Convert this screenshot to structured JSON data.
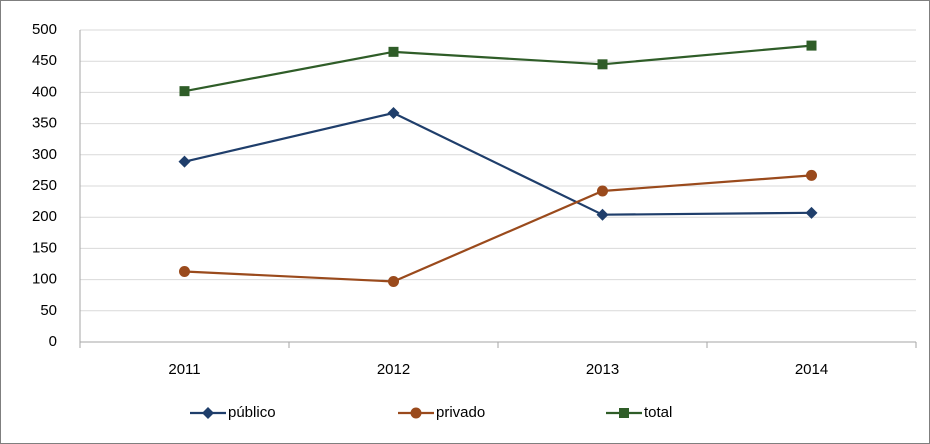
{
  "chart_data": {
    "type": "line",
    "categories": [
      "2011",
      "2012",
      "2013",
      "2014"
    ],
    "series": [
      {
        "name": "público",
        "color": "#1f3e6b",
        "marker": "diamond",
        "values": [
          289,
          367,
          204,
          207
        ]
      },
      {
        "name": "privado",
        "color": "#9a4a1c",
        "marker": "circle",
        "values": [
          113,
          97,
          242,
          267
        ]
      },
      {
        "name": "total",
        "color": "#2f5d28",
        "marker": "square",
        "values": [
          402,
          465,
          445,
          475
        ]
      }
    ],
    "ylim": [
      0,
      500
    ],
    "yticks": [
      0,
      50,
      100,
      150,
      200,
      250,
      300,
      350,
      400,
      450,
      500
    ],
    "grid": true,
    "legend": "bottom"
  }
}
